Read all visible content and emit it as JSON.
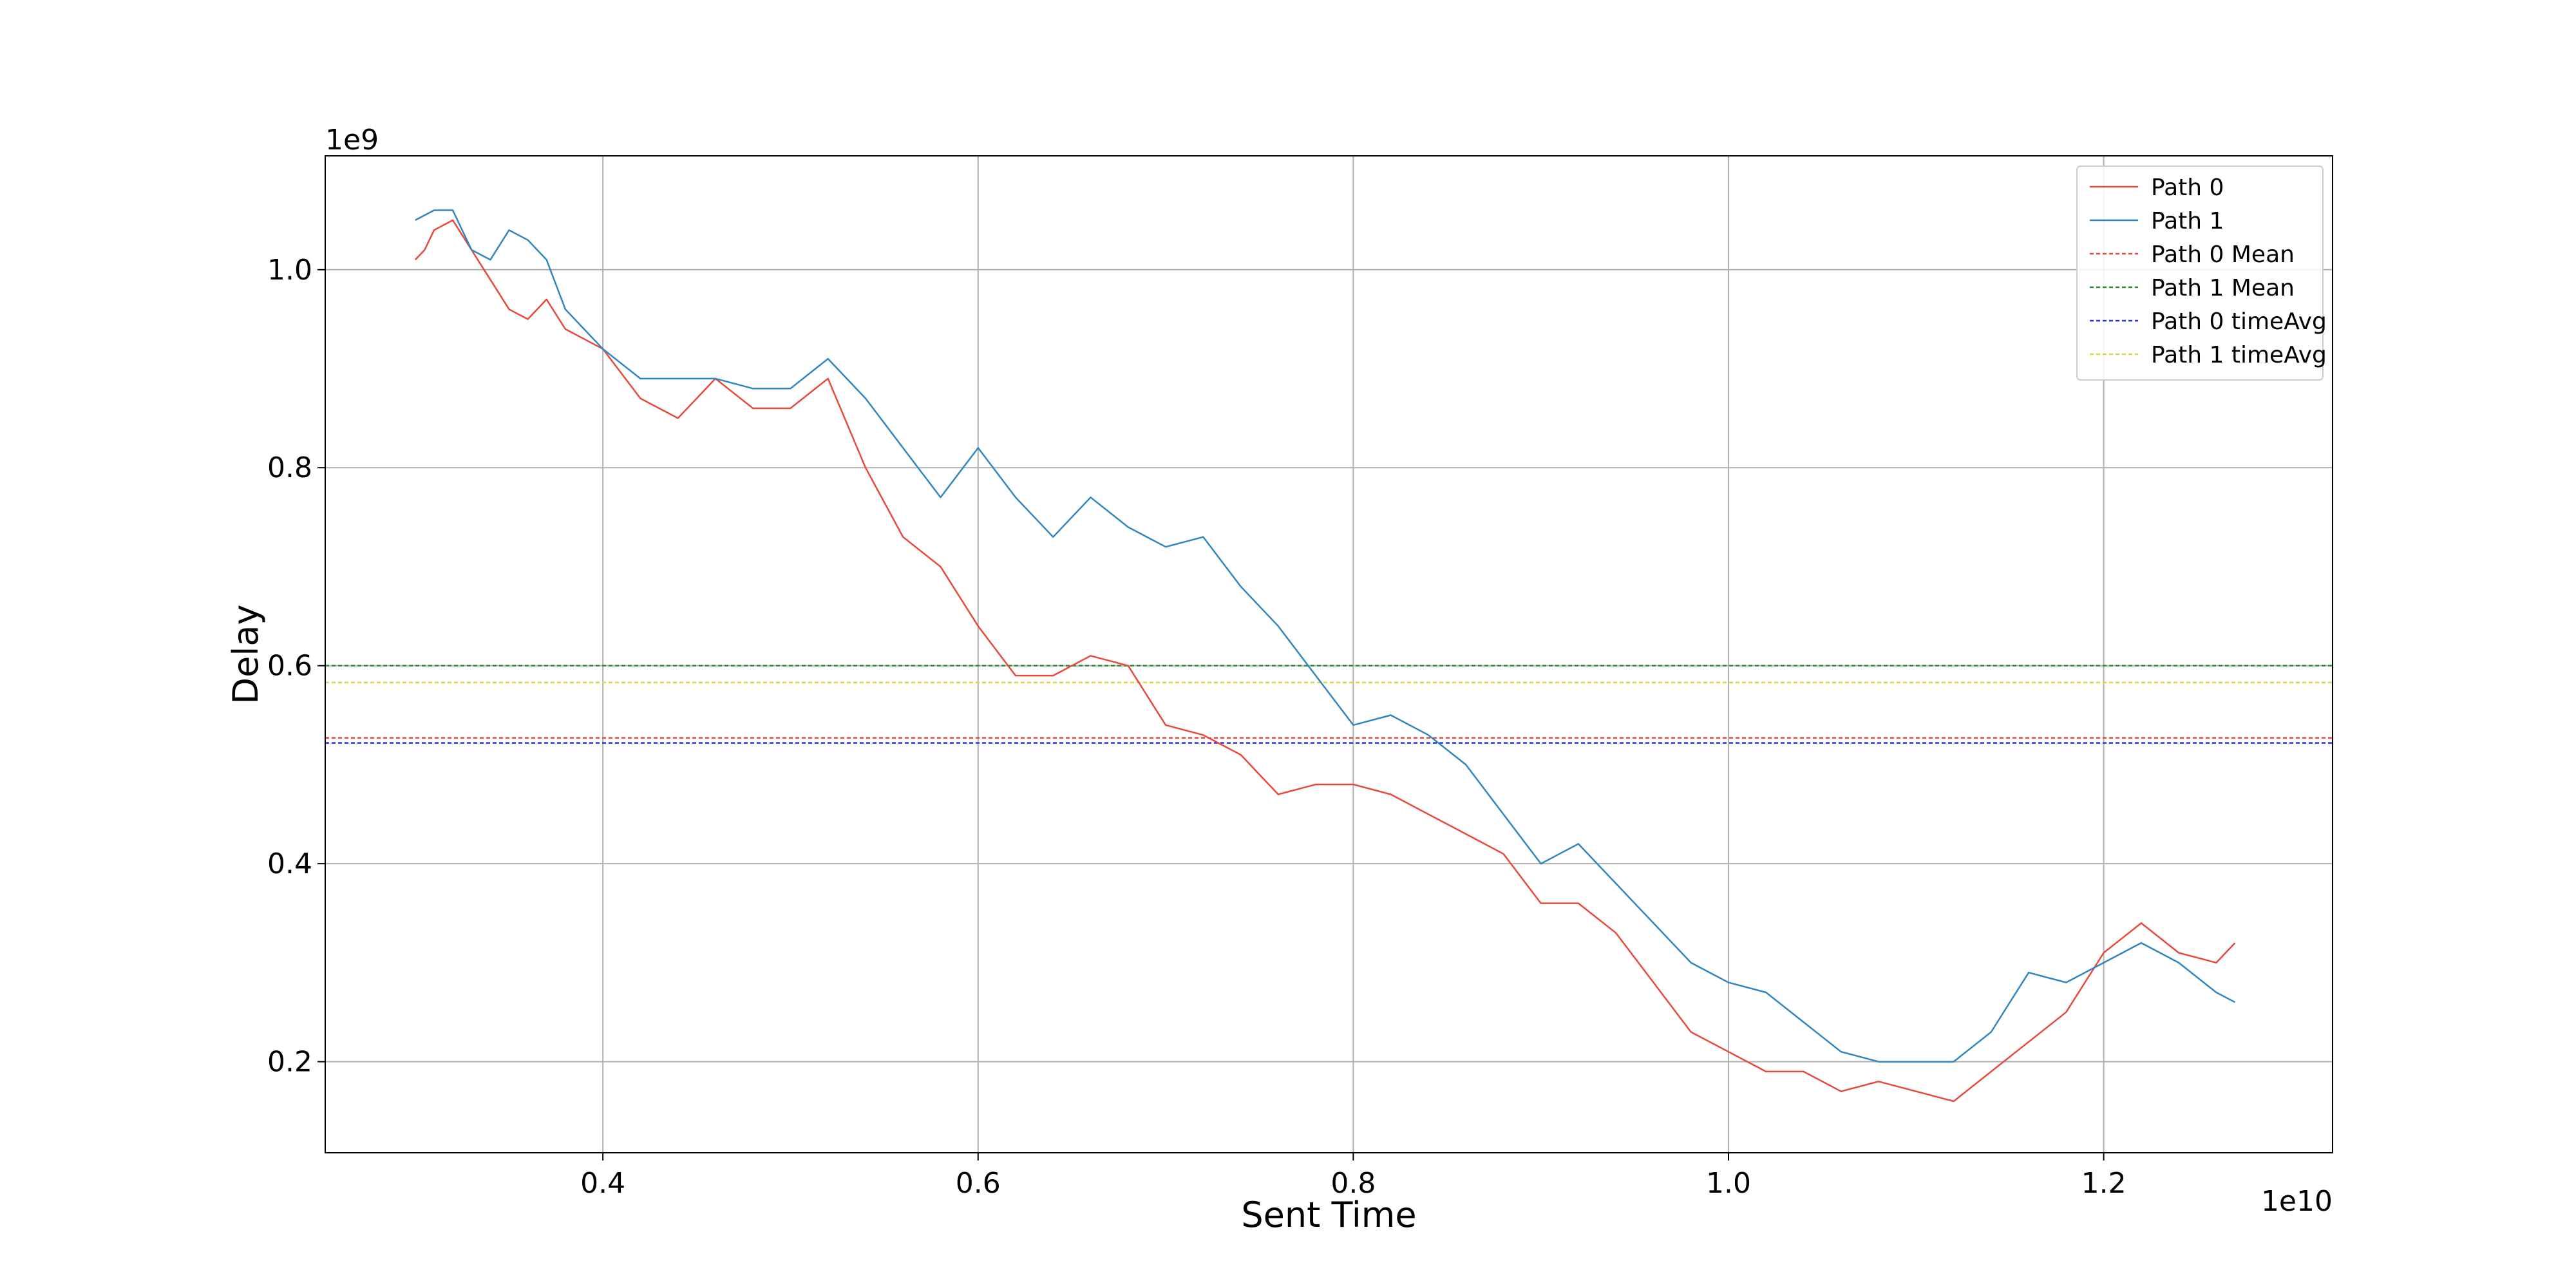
{
  "chart_data": {
    "type": "line",
    "title": "",
    "xlabel": "Sent Time",
    "ylabel": "Delay",
    "x_offset_label": "1e10",
    "y_offset_label": "1e9",
    "xlim": [
      0.252,
      1.322
    ],
    "ylim": [
      0.108,
      1.115
    ],
    "xticks": [
      0.4,
      0.6,
      0.8,
      1.0,
      1.2
    ],
    "xtick_labels": [
      "0.4",
      "0.6",
      "0.8",
      "1.0",
      "1.2"
    ],
    "yticks": [
      0.2,
      0.4,
      0.6,
      0.8,
      1.0
    ],
    "ytick_labels": [
      "0.2",
      "0.4",
      "0.6",
      "0.8",
      "1.0"
    ],
    "grid": true,
    "legend_position": "top-right",
    "series": [
      {
        "name": "Path 0",
        "color": "#e8493a",
        "x": [
          0.3,
          0.305,
          0.31,
          0.32,
          0.33,
          0.34,
          0.35,
          0.36,
          0.37,
          0.38,
          0.4,
          0.42,
          0.44,
          0.46,
          0.48,
          0.5,
          0.52,
          0.54,
          0.56,
          0.58,
          0.6,
          0.62,
          0.64,
          0.66,
          0.68,
          0.7,
          0.72,
          0.74,
          0.76,
          0.78,
          0.8,
          0.82,
          0.84,
          0.86,
          0.88,
          0.9,
          0.92,
          0.94,
          0.96,
          0.98,
          1.0,
          1.02,
          1.04,
          1.06,
          1.08,
          1.1,
          1.12,
          1.14,
          1.16,
          1.18,
          1.2,
          1.22,
          1.24,
          1.26,
          1.27
        ],
        "values": [
          1.01,
          1.02,
          1.04,
          1.05,
          1.02,
          0.99,
          0.96,
          0.95,
          0.97,
          0.94,
          0.92,
          0.87,
          0.85,
          0.89,
          0.86,
          0.86,
          0.89,
          0.8,
          0.73,
          0.7,
          0.64,
          0.59,
          0.59,
          0.61,
          0.6,
          0.54,
          0.53,
          0.51,
          0.47,
          0.48,
          0.48,
          0.47,
          0.45,
          0.43,
          0.41,
          0.36,
          0.36,
          0.33,
          0.28,
          0.23,
          0.21,
          0.19,
          0.19,
          0.17,
          0.18,
          0.17,
          0.16,
          0.19,
          0.22,
          0.25,
          0.31,
          0.34,
          0.31,
          0.3,
          0.32
        ]
      },
      {
        "name": "Path 1",
        "color": "#2f86c0",
        "x": [
          0.3,
          0.31,
          0.32,
          0.33,
          0.34,
          0.35,
          0.36,
          0.37,
          0.38,
          0.4,
          0.42,
          0.44,
          0.46,
          0.48,
          0.5,
          0.52,
          0.54,
          0.56,
          0.58,
          0.6,
          0.62,
          0.64,
          0.66,
          0.68,
          0.7,
          0.72,
          0.74,
          0.76,
          0.78,
          0.8,
          0.82,
          0.84,
          0.86,
          0.88,
          0.9,
          0.92,
          0.94,
          0.96,
          0.98,
          1.0,
          1.02,
          1.04,
          1.06,
          1.08,
          1.1,
          1.12,
          1.14,
          1.16,
          1.18,
          1.2,
          1.22,
          1.24,
          1.26,
          1.27
        ],
        "values": [
          1.05,
          1.06,
          1.06,
          1.02,
          1.01,
          1.04,
          1.03,
          1.01,
          0.96,
          0.92,
          0.89,
          0.89,
          0.89,
          0.88,
          0.88,
          0.91,
          0.87,
          0.82,
          0.77,
          0.82,
          0.77,
          0.73,
          0.77,
          0.74,
          0.72,
          0.73,
          0.68,
          0.64,
          0.59,
          0.54,
          0.55,
          0.53,
          0.5,
          0.45,
          0.4,
          0.42,
          0.38,
          0.34,
          0.3,
          0.28,
          0.27,
          0.24,
          0.21,
          0.2,
          0.2,
          0.2,
          0.23,
          0.29,
          0.28,
          0.3,
          0.32,
          0.3,
          0.27,
          0.26
        ]
      },
      {
        "name": "Path 0 Mean",
        "color": "#e8493a",
        "style": "dashed",
        "constant": 0.527
      },
      {
        "name": "Path 1 Mean",
        "color": "#2e8b2e",
        "style": "dashed",
        "constant": 0.6
      },
      {
        "name": "Path 0 timeAvg",
        "color": "#3333dd",
        "style": "dashed",
        "constant": 0.522
      },
      {
        "name": "Path 1 timeAvg",
        "color": "#d8d84a",
        "style": "dashed",
        "constant": 0.583
      }
    ]
  }
}
